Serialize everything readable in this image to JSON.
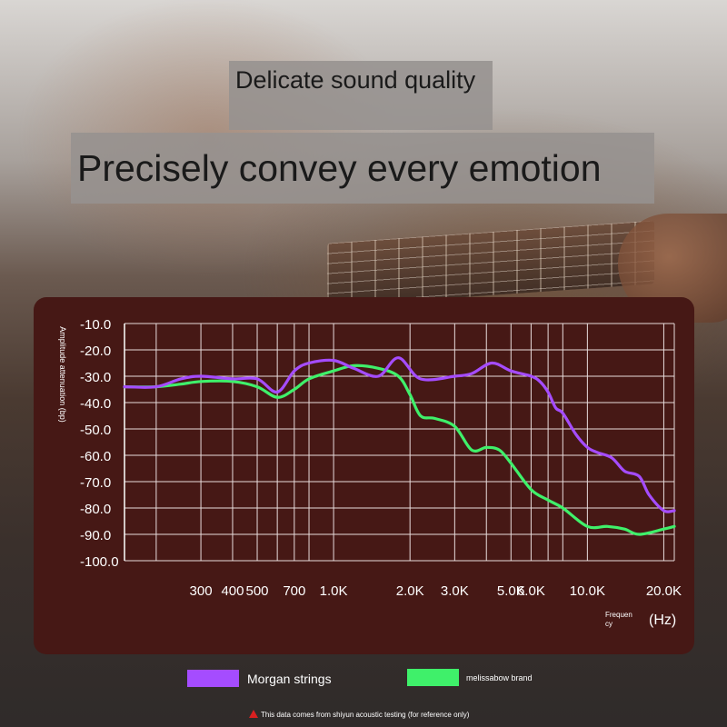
{
  "header": {
    "subtitle": "Delicate sound quality",
    "title": "Precisely convey every emotion"
  },
  "chart_data": {
    "type": "line",
    "ylabel": "Amplitude attenuation (bp)",
    "xlabel_main": "(Hz)",
    "xlabel_small": "Frequen cy",
    "y_ticks": [
      -10,
      -20,
      -30,
      -40,
      -50,
      -60,
      -70,
      -80,
      -90,
      -100
    ],
    "y_tick_labels": [
      "-10.0",
      "-20.0",
      "-30.0",
      "-40.0",
      "-50.0",
      "-60.0",
      "-70.0",
      "-80.0",
      "-90.0",
      "-100.0"
    ],
    "ylim": [
      -100,
      -10
    ],
    "x_scale": "log",
    "xlim": [
      150,
      22000
    ],
    "x_ticks": [
      300,
      400,
      500,
      700,
      1000,
      2000,
      3000,
      5000,
      6000,
      10000,
      20000
    ],
    "x_tick_labels": [
      "300",
      "400",
      "500",
      "700",
      "1.0K",
      "2.0K",
      "3.0K",
      "5.0K",
      "6.0K",
      "10.0K",
      "20.0K"
    ],
    "vertical_grid": [
      200,
      300,
      400,
      500,
      600,
      700,
      800,
      1000,
      2000,
      3000,
      4000,
      5000,
      6000,
      7000,
      8000,
      10000,
      20000
    ],
    "grid": true,
    "series": [
      {
        "name": "Morgan strings",
        "color": "#a54cff",
        "x": [
          150,
          200,
          250,
          300,
          400,
          500,
          600,
          700,
          800,
          1000,
          1200,
          1500,
          1800,
          2200,
          3000,
          3500,
          4200,
          5000,
          6000,
          6500,
          7000,
          7500,
          8000,
          9000,
          10000,
          11000,
          12500,
          14000,
          16000,
          17500,
          20000,
          22000
        ],
        "y": [
          -34,
          -34,
          -31,
          -30,
          -31,
          -31,
          -36,
          -28,
          -25,
          -24,
          -27,
          -30,
          -23,
          -31,
          -30,
          -29,
          -25,
          -28,
          -30,
          -32,
          -36,
          -42,
          -44,
          -52,
          -57,
          -59,
          -61,
          -66,
          -68,
          -75,
          -81,
          -81
        ]
      },
      {
        "name": "melissabow brand",
        "color": "#3ff06a",
        "x": [
          150,
          200,
          250,
          300,
          400,
          500,
          600,
          700,
          800,
          1000,
          1200,
          1500,
          1800,
          2000,
          2200,
          2500,
          3000,
          3500,
          4000,
          4500,
          5000,
          6000,
          7000,
          8000,
          10000,
          12000,
          14000,
          16000,
          20000,
          22000
        ],
        "y": [
          -34,
          -34,
          -33,
          -32,
          -32,
          -34,
          -38,
          -35,
          -31,
          -28,
          -26,
          -27,
          -30,
          -37,
          -45,
          -46,
          -49,
          -58,
          -57,
          -58,
          -63,
          -73,
          -77,
          -80,
          -87,
          -87,
          -88,
          -90,
          -88,
          -87
        ]
      }
    ]
  },
  "legend": {
    "morgan_label": "Morgan strings",
    "melissa_label": "melissabow brand",
    "morgan_color": "#a54cff",
    "melissa_color": "#3ff06a"
  },
  "footnote": "This data comes from shiyun acoustic testing (for reference only)"
}
